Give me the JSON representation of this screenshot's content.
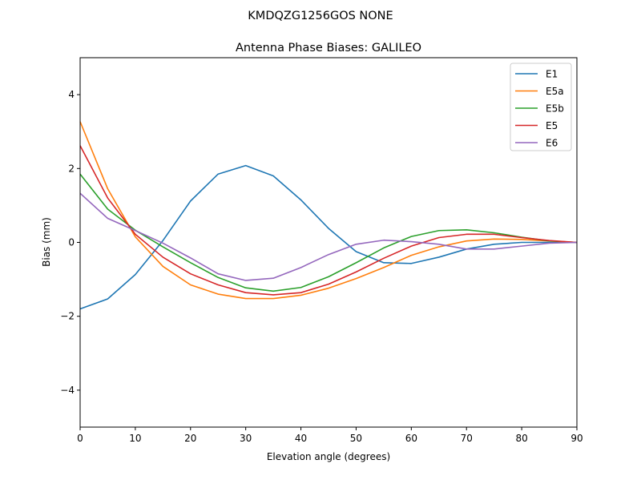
{
  "chart_data": {
    "type": "line",
    "suptitle": "KMDQZG1256GOS   NONE",
    "title": "Antenna Phase Biases: GALILEO",
    "xlabel": "Elevation angle (degrees)",
    "ylabel": "Bias (mm)",
    "xlim": [
      0,
      90
    ],
    "ylim": [
      -5,
      5
    ],
    "xticks": [
      0,
      10,
      20,
      30,
      40,
      50,
      60,
      70,
      80,
      90
    ],
    "yticks": [
      -4,
      -2,
      0,
      2,
      4
    ],
    "ytick_labels": [
      "−4",
      "−2",
      "0",
      "2",
      "4"
    ],
    "grid": false,
    "legend_position": "top-right",
    "x": [
      0,
      5,
      10,
      15,
      20,
      25,
      30,
      35,
      40,
      45,
      50,
      55,
      60,
      65,
      70,
      75,
      80,
      85,
      90
    ],
    "series": [
      {
        "name": "E1",
        "color": "#1f77b4",
        "values": [
          -1.8,
          -1.53,
          -0.87,
          0.05,
          1.12,
          1.85,
          2.08,
          1.8,
          1.15,
          0.38,
          -0.25,
          -0.55,
          -0.57,
          -0.4,
          -0.18,
          -0.05,
          0.0,
          0.0,
          0.0
        ]
      },
      {
        "name": "E5a",
        "color": "#ff7f0e",
        "values": [
          3.27,
          1.45,
          0.15,
          -0.65,
          -1.15,
          -1.4,
          -1.52,
          -1.52,
          -1.43,
          -1.24,
          -0.98,
          -0.68,
          -0.35,
          -0.12,
          0.04,
          0.09,
          0.08,
          0.04,
          0.0
        ]
      },
      {
        "name": "E5b",
        "color": "#2ca02c",
        "values": [
          1.85,
          0.9,
          0.33,
          -0.12,
          -0.55,
          -0.95,
          -1.23,
          -1.32,
          -1.22,
          -0.93,
          -0.55,
          -0.15,
          0.16,
          0.32,
          0.34,
          0.26,
          0.14,
          0.04,
          0.0
        ]
      },
      {
        "name": "E5",
        "color": "#d62728",
        "values": [
          2.62,
          1.2,
          0.22,
          -0.4,
          -0.85,
          -1.15,
          -1.36,
          -1.42,
          -1.36,
          -1.13,
          -0.8,
          -0.43,
          -0.1,
          0.13,
          0.22,
          0.22,
          0.13,
          0.05,
          0.0
        ]
      },
      {
        "name": "E6",
        "color": "#9467bd",
        "values": [
          1.33,
          0.65,
          0.32,
          -0.02,
          -0.42,
          -0.85,
          -1.03,
          -0.97,
          -0.68,
          -0.33,
          -0.05,
          0.06,
          0.02,
          -0.05,
          -0.18,
          -0.18,
          -0.1,
          -0.02,
          0.0
        ]
      }
    ]
  }
}
